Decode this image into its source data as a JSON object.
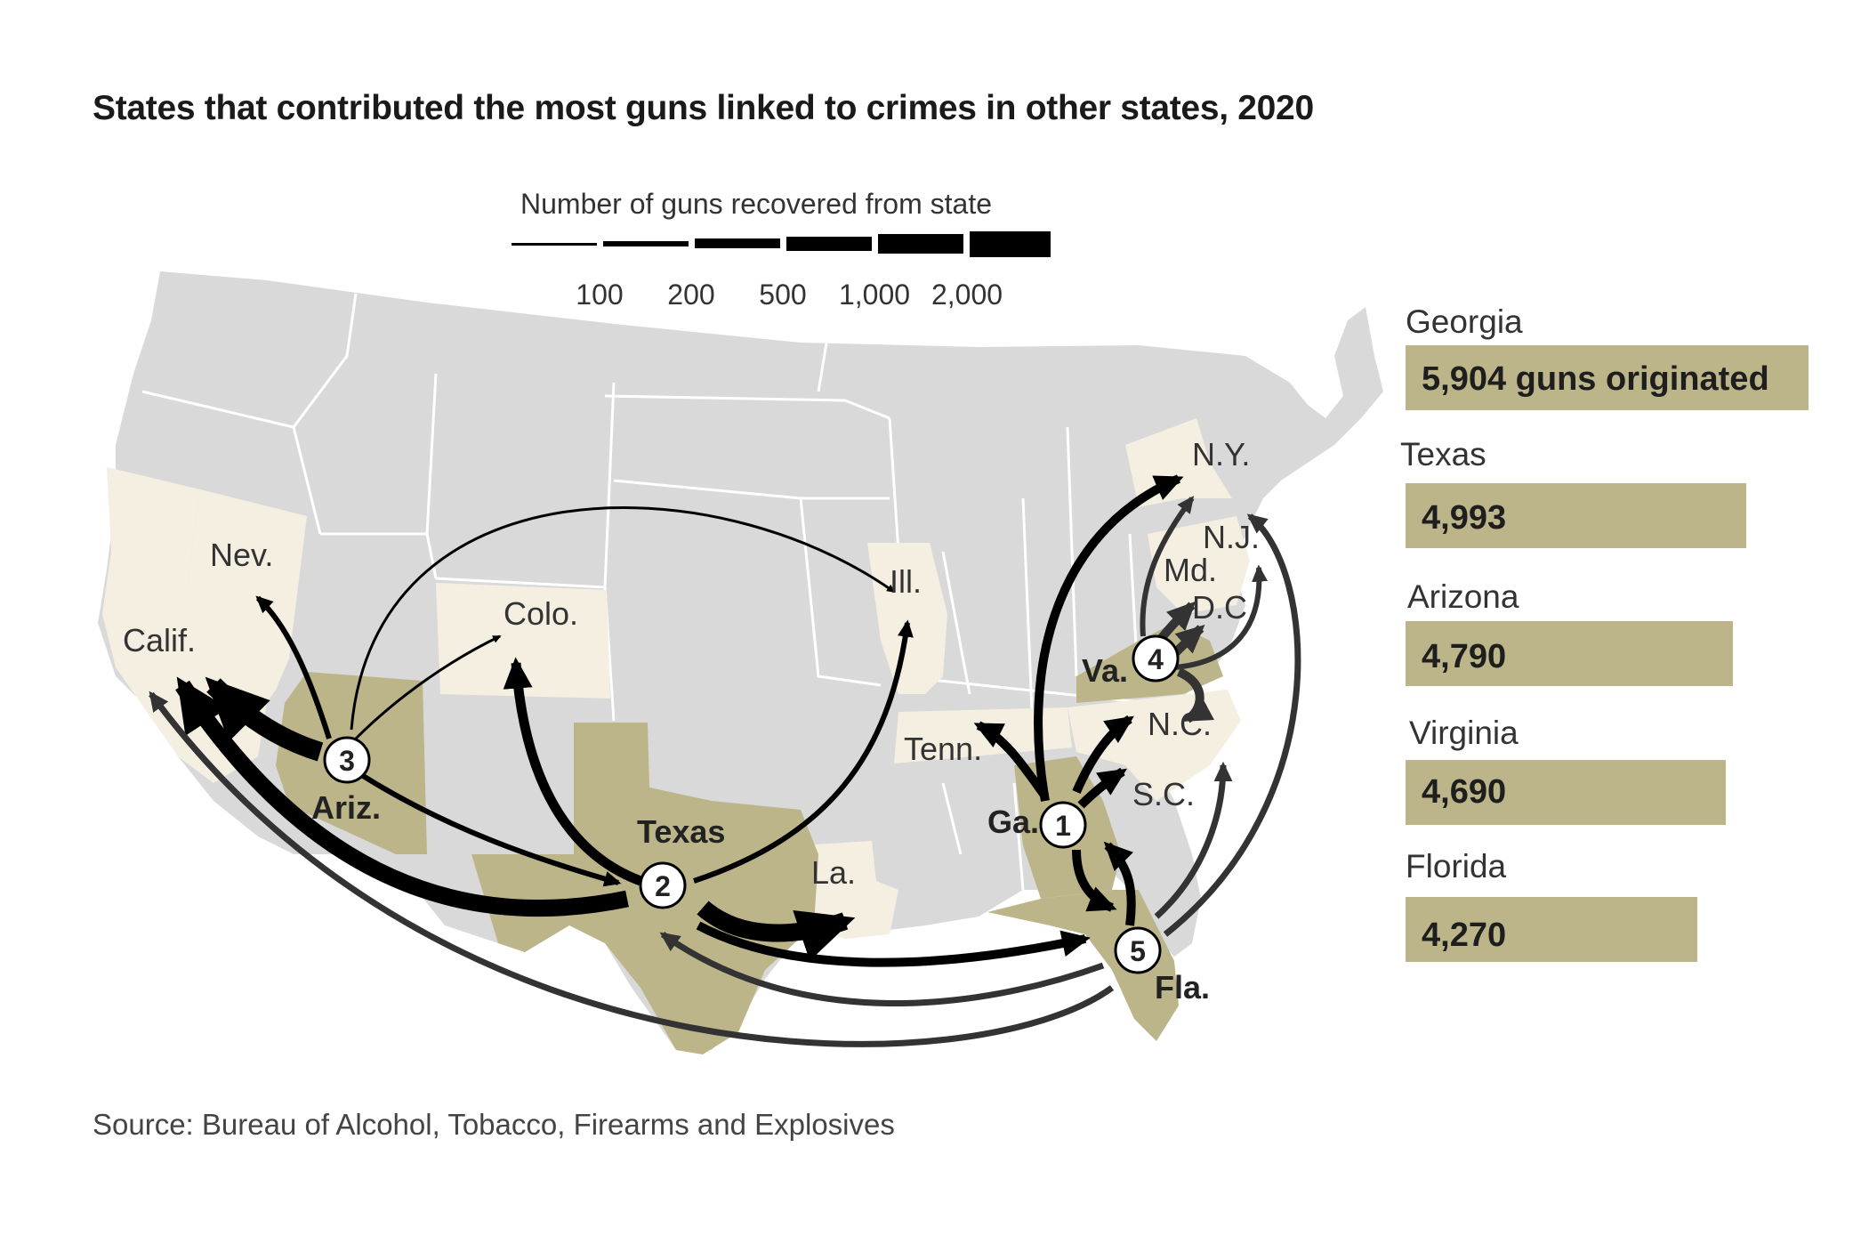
{
  "title": "States that contributed the most guns linked to crimes in other states, 2020",
  "source": "Source: Bureau of Alcohol, Tobacco, Firearms and Explosives",
  "legend": {
    "title": "Number of guns recovered from state",
    "ticks": [
      "100",
      "200",
      "500",
      "1,000",
      "2,000"
    ]
  },
  "colors": {
    "background": "#ffffff",
    "us_land": "#d9d9d9",
    "state_borders": "#ffffff",
    "destination_state": "#f4efe0",
    "origin_state": "#bcb58a",
    "bar_fill": "#bcb58a",
    "flow_origin_1_5": "#000000",
    "flow_origin_4": "#333333"
  },
  "origins": [
    {
      "rank": "1",
      "state": "Ga.",
      "name": "Georgia",
      "value": 5904,
      "value_label": "5,904 guns originated"
    },
    {
      "rank": "2",
      "state": "Texas",
      "name": "Texas",
      "value": 4993,
      "value_label": "4,993"
    },
    {
      "rank": "3",
      "state": "Ariz.",
      "name": "Arizona",
      "value": 4790,
      "value_label": "4,790"
    },
    {
      "rank": "4",
      "state": "Va.",
      "name": "Virginia",
      "value": 4690,
      "value_label": "4,690"
    },
    {
      "rank": "5",
      "state": "Fla.",
      "name": "Florida",
      "value": 4270,
      "value_label": "4,270"
    }
  ],
  "destination_labels": {
    "nev": "Nev.",
    "calif": "Calif.",
    "colo": "Colo.",
    "ill": "Ill.",
    "tenn": "Tenn.",
    "la": "La.",
    "ny": "N.Y.",
    "nj": "N.J.",
    "md": "Md.",
    "dc": "D.C.",
    "nc": "N.C.",
    "sc": "S.C."
  },
  "flows": [
    {
      "from": "Ariz.",
      "to": "Calif.",
      "band": "1,000"
    },
    {
      "from": "Ariz.",
      "to": "Nev.",
      "band": "200"
    },
    {
      "from": "Ariz.",
      "to": "Colo.",
      "band": "100"
    },
    {
      "from": "Ariz.",
      "to": "Ill.",
      "band": "100"
    },
    {
      "from": "Ariz.",
      "to": "Texas",
      "band": "200"
    },
    {
      "from": "Texas",
      "to": "Calif.",
      "band": "1,000"
    },
    {
      "from": "Texas",
      "to": "Colo.",
      "band": "500"
    },
    {
      "from": "Texas",
      "to": "Ill.",
      "band": "200"
    },
    {
      "from": "Texas",
      "to": "La.",
      "band": "1,000"
    },
    {
      "from": "Texas",
      "to": "Fla.",
      "band": "500"
    },
    {
      "from": "Ga.",
      "to": "Tenn.",
      "band": "500"
    },
    {
      "from": "Ga.",
      "to": "N.C.",
      "band": "500"
    },
    {
      "from": "Ga.",
      "to": "S.C.",
      "band": "500"
    },
    {
      "from": "Ga.",
      "to": "N.Y.",
      "band": "500"
    },
    {
      "from": "Ga.",
      "to": "Fla.",
      "band": "500"
    },
    {
      "from": "Va.",
      "to": "N.Y.",
      "band": "200"
    },
    {
      "from": "Va.",
      "to": "Md.",
      "band": "500"
    },
    {
      "from": "Va.",
      "to": "D.C.",
      "band": "500"
    },
    {
      "from": "Va.",
      "to": "N.J.",
      "band": "200"
    },
    {
      "from": "Va.",
      "to": "N.C.",
      "band": "500"
    },
    {
      "from": "Fla.",
      "to": "Ga.",
      "band": "500"
    },
    {
      "from": "Fla.",
      "to": "Texas",
      "band": "200"
    },
    {
      "from": "Fla.",
      "to": "Calif.",
      "band": "200"
    },
    {
      "from": "Fla.",
      "to": "N.C.",
      "band": "200"
    },
    {
      "from": "Fla.",
      "to": "N.Y.",
      "band": "200"
    }
  ]
}
